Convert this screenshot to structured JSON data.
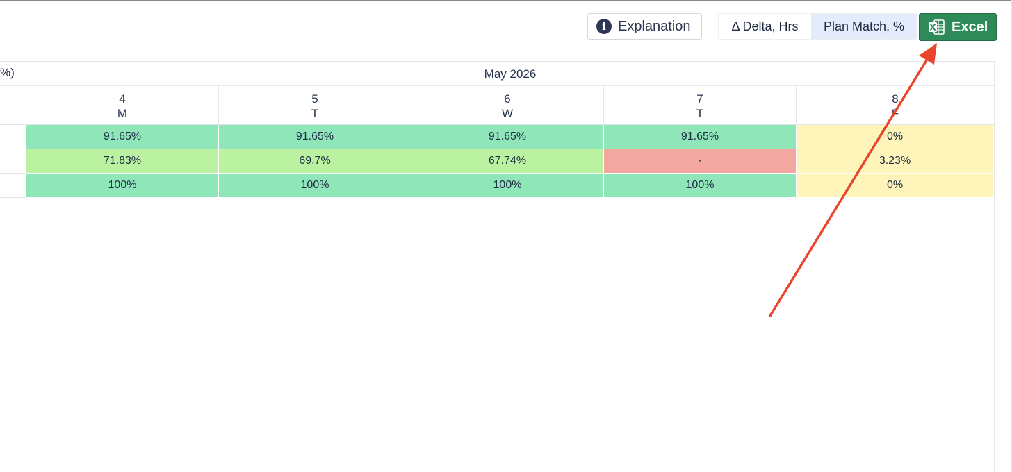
{
  "toolbar": {
    "explanation_label": "Explanation",
    "explanation_icon": "info-icon",
    "toggle": [
      {
        "label": "Δ Delta, Hrs",
        "active": false
      },
      {
        "label": "Plan Match, %",
        "active": true
      }
    ],
    "excel_label": "Excel",
    "excel_icon": "excel-icon"
  },
  "table": {
    "header_fragment": "%)",
    "month": "May 2026",
    "days": [
      {
        "day": "4",
        "weekday": "M"
      },
      {
        "day": "5",
        "weekday": "T"
      },
      {
        "day": "6",
        "weekday": "W"
      },
      {
        "day": "7",
        "weekday": "T"
      },
      {
        "day": "8",
        "weekday": "F"
      }
    ],
    "rows": [
      [
        "91.65%",
        "91.65%",
        "91.65%",
        "91.65%",
        "0%"
      ],
      [
        "71.83%",
        "69.7%",
        "67.74%",
        "-",
        "3.23%"
      ],
      [
        "100%",
        "100%",
        "100%",
        "100%",
        "0%"
      ]
    ]
  },
  "colors": {
    "green": "#8fe6b9",
    "light_green": "#baf2a2",
    "red": "#f2a7a0",
    "yellow": "#fff5ba",
    "excel_green": "#2f8a5a",
    "arrow": "#e8462c"
  },
  "cell_colors": [
    [
      "green",
      "green",
      "green",
      "green",
      "yellow"
    ],
    [
      "light_green",
      "light_green",
      "light_green",
      "red",
      "yellow"
    ],
    [
      "green",
      "green",
      "green",
      "green",
      "yellow"
    ]
  ]
}
